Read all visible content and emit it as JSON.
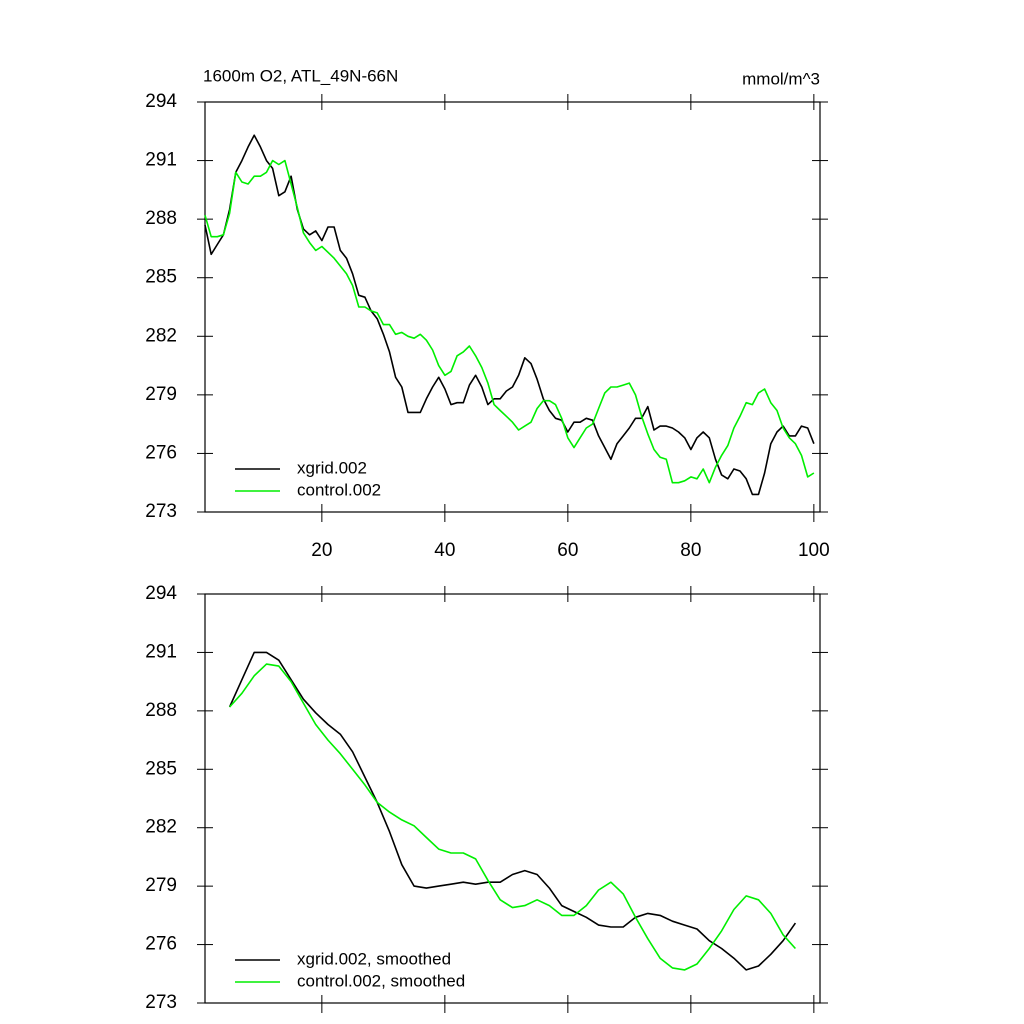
{
  "chart_data": [
    {
      "type": "line",
      "title": "1600m O2, ATL_49N-66N",
      "units": "mmol/m^3",
      "x": [
        1,
        2,
        3,
        4,
        5,
        6,
        7,
        8,
        9,
        10,
        11,
        12,
        13,
        14,
        15,
        16,
        17,
        18,
        19,
        20,
        21,
        22,
        23,
        24,
        25,
        26,
        27,
        28,
        29,
        30,
        31,
        32,
        33,
        34,
        35,
        36,
        37,
        38,
        39,
        40,
        41,
        42,
        43,
        44,
        45,
        46,
        47,
        48,
        49,
        50,
        51,
        52,
        53,
        54,
        55,
        56,
        57,
        58,
        59,
        60,
        61,
        62,
        63,
        64,
        65,
        66,
        67,
        68,
        69,
        70,
        71,
        72,
        73,
        74,
        75,
        76,
        77,
        78,
        79,
        80,
        81,
        82,
        83,
        84,
        85,
        86,
        87,
        88,
        89,
        90,
        91,
        92,
        93,
        94,
        95,
        96,
        97,
        98,
        99,
        100
      ],
      "series": [
        {
          "name": "xgrid.002",
          "color": "#000000",
          "values": [
            287.7,
            286.2,
            286.7,
            287.2,
            288.5,
            290.4,
            291.0,
            291.7,
            292.3,
            291.7,
            291.0,
            290.6,
            289.2,
            289.4,
            290.2,
            288.5,
            287.5,
            287.2,
            287.4,
            286.9,
            287.6,
            287.6,
            286.4,
            286.0,
            285.2,
            284.1,
            284.0,
            283.3,
            282.9,
            282.1,
            281.2,
            279.9,
            279.4,
            278.1,
            278.1,
            278.1,
            278.8,
            279.4,
            279.9,
            279.3,
            278.5,
            278.6,
            278.6,
            279.5,
            280.0,
            279.4,
            278.5,
            278.8,
            278.8,
            279.2,
            279.4,
            280.0,
            280.9,
            280.6,
            279.8,
            278.8,
            278.2,
            277.8,
            277.7,
            277.1,
            277.6,
            277.6,
            277.8,
            277.7,
            276.9,
            276.3,
            275.7,
            276.5,
            276.9,
            277.3,
            277.8,
            277.8,
            278.4,
            277.2,
            277.4,
            277.4,
            277.3,
            277.1,
            276.8,
            276.2,
            276.8,
            277.1,
            276.8,
            275.7,
            274.9,
            274.7,
            275.2,
            275.1,
            274.7,
            273.9,
            273.9,
            275.0,
            276.5,
            277.1,
            277.4,
            276.9,
            276.9,
            277.4,
            277.3,
            276.5
          ]
        },
        {
          "name": "control.002",
          "color": "#00ee00",
          "values": [
            288.2,
            287.1,
            287.1,
            287.2,
            288.3,
            290.4,
            289.9,
            289.8,
            290.2,
            290.2,
            290.4,
            291.0,
            290.8,
            291.0,
            289.8,
            288.6,
            287.3,
            286.8,
            286.4,
            286.6,
            286.3,
            286.0,
            285.6,
            285.2,
            284.6,
            283.5,
            283.5,
            283.3,
            283.2,
            282.6,
            282.6,
            282.1,
            282.2,
            282.0,
            281.9,
            282.1,
            281.8,
            281.3,
            280.5,
            280.0,
            280.2,
            281.0,
            281.2,
            281.5,
            281.0,
            280.4,
            279.6,
            278.5,
            278.2,
            277.9,
            277.6,
            277.2,
            277.4,
            277.6,
            278.3,
            278.7,
            278.7,
            278.5,
            277.8,
            276.8,
            276.3,
            276.8,
            277.3,
            277.5,
            278.3,
            279.1,
            279.4,
            279.4,
            279.5,
            279.6,
            279.0,
            277.9,
            277.0,
            276.2,
            275.8,
            275.7,
            274.5,
            274.5,
            274.6,
            274.8,
            274.7,
            275.2,
            274.5,
            275.3,
            275.9,
            276.4,
            277.3,
            277.9,
            278.6,
            278.5,
            279.1,
            279.3,
            278.6,
            278.2,
            277.3,
            276.8,
            276.5,
            275.9,
            274.8,
            275.0
          ]
        }
      ],
      "xlim": [
        1,
        101
      ],
      "xticks": [
        20,
        40,
        60,
        80,
        100
      ],
      "xtick_labels": true,
      "ylim": [
        273,
        294
      ],
      "yticks": [
        273,
        276,
        279,
        282,
        285,
        288,
        291,
        294
      ],
      "legend": "lower left"
    },
    {
      "type": "line",
      "x": [
        5,
        7,
        9,
        11,
        13,
        15,
        17,
        19,
        21,
        23,
        25,
        27,
        29,
        31,
        33,
        35,
        37,
        39,
        41,
        43,
        45,
        47,
        49,
        51,
        53,
        55,
        57,
        59,
        61,
        63,
        65,
        67,
        69,
        71,
        73,
        75,
        77,
        79,
        81,
        83,
        85,
        87,
        89,
        91,
        93,
        95,
        97
      ],
      "series": [
        {
          "name": "xgrid.002, smoothed",
          "color": "#000000",
          "values": [
            288.2,
            289.6,
            291.0,
            291.0,
            290.6,
            289.6,
            288.6,
            287.9,
            287.3,
            286.8,
            285.9,
            284.6,
            283.3,
            281.8,
            280.1,
            279.0,
            278.9,
            279.0,
            279.1,
            279.2,
            279.1,
            279.2,
            279.2,
            279.6,
            279.8,
            279.6,
            278.9,
            278.0,
            277.7,
            277.4,
            277.0,
            276.9,
            276.9,
            277.4,
            277.6,
            277.5,
            277.2,
            277.0,
            276.8,
            276.2,
            275.8,
            275.3,
            274.7,
            274.9,
            275.5,
            276.2,
            277.1
          ]
        },
        {
          "name": "control.002, smoothed",
          "color": "#00ee00",
          "values": [
            288.2,
            288.9,
            289.8,
            290.4,
            290.3,
            289.5,
            288.4,
            287.3,
            286.5,
            285.8,
            285.0,
            284.2,
            283.3,
            282.8,
            282.4,
            282.1,
            281.5,
            280.9,
            280.7,
            280.7,
            280.4,
            279.3,
            278.3,
            277.9,
            278.0,
            278.3,
            278.0,
            277.5,
            277.5,
            278.0,
            278.8,
            279.2,
            278.6,
            277.4,
            276.3,
            275.3,
            274.8,
            274.7,
            275.0,
            275.8,
            276.7,
            277.8,
            278.5,
            278.3,
            277.6,
            276.5,
            275.8
          ]
        }
      ],
      "xlim": [
        1,
        101
      ],
      "xticks": [
        20,
        40,
        60,
        80,
        100
      ],
      "xtick_labels": false,
      "ylim": [
        273,
        294
      ],
      "yticks": [
        273,
        276,
        279,
        282,
        285,
        288,
        291,
        294
      ],
      "legend": "lower left"
    }
  ]
}
